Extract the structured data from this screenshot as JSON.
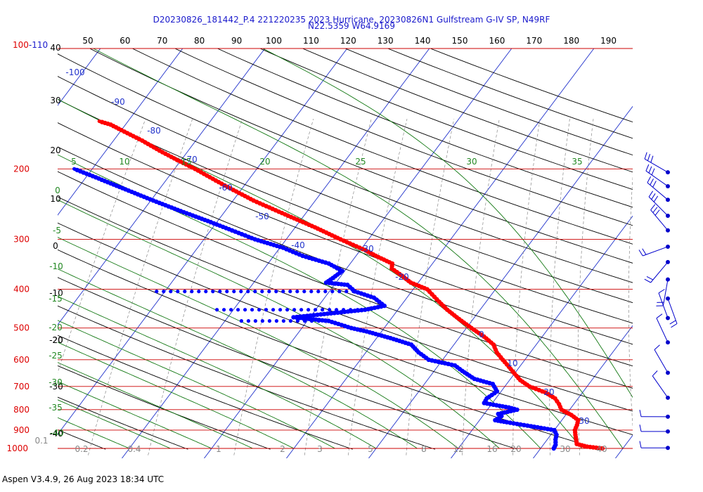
{
  "chart_data": {
    "type": "line",
    "chart_kind": "skew-T log-P sounding diagram",
    "title_line1": "D20230826_181442_P.4 221220235 2023 Hurricane, 20230826N1 Gulfstream G-IV SP, N49RF",
    "title_line2": "N22.5359 W64.9169",
    "footer": "Aspen V3.4.9, 26 Aug 2023  18:34 UTC",
    "ylim_hPa": [
      1000,
      100
    ],
    "y_scale": "log",
    "pressure_labels": [
      "100-110",
      "200",
      "300",
      "400",
      "500",
      "600",
      "700",
      "800",
      "900",
      "1000"
    ],
    "top_temperature_labels": [
      "50",
      "60",
      "70",
      "80",
      "90",
      "100",
      "110",
      "120",
      "130",
      "140",
      "150",
      "160",
      "170",
      "180",
      "190"
    ],
    "height_labels_left": [
      "40",
      "30",
      "20",
      "10",
      "0",
      "-10",
      "-20",
      "-30",
      "-40"
    ],
    "isotherm_labels": [
      "-100",
      "-90",
      "-80",
      "-70",
      "-60",
      "-50",
      "-40",
      "-30",
      "-20",
      "0",
      "10",
      "20",
      "30"
    ],
    "adiabat_labels": [
      "5",
      "10",
      "15",
      "20",
      "25",
      "30",
      "35"
    ],
    "green_left_labels": [
      "0",
      "-5",
      "-10",
      "-15",
      "-20",
      "-25",
      "-30",
      "-35",
      "-40"
    ],
    "mixing_ratio_labels": [
      "0.1",
      "0.2",
      "0.4",
      "1",
      "2",
      "3",
      "5",
      "8",
      "12",
      "16",
      "20",
      "30",
      "40"
    ],
    "colors": {
      "temperature": "#ff0000",
      "dewpoint": "#0000ff",
      "isobar": "#cc0000",
      "isotherm": "#2233cc",
      "dry_adiabat": "#000000",
      "moist_adiabat": "#117711",
      "mixing_ratio": "#888888",
      "wind_barb": "#0000cc"
    },
    "series": [
      {
        "name": "",
        "kind": "temperature",
        "points": [
          [
            1000,
            27.5
          ],
          [
            990,
            25.5
          ],
          [
            975,
            24.0
          ],
          [
            950,
            23.5
          ],
          [
            925,
            23.0
          ],
          [
            900,
            22.5
          ],
          [
            875,
            22.3
          ],
          [
            850,
            22.0
          ],
          [
            825,
            20.7
          ],
          [
            800,
            19.0
          ],
          [
            775,
            18.2
          ],
          [
            750,
            17.2
          ],
          [
            725,
            15.5
          ],
          [
            700,
            13.0
          ],
          [
            675,
            11.3
          ],
          [
            650,
            10.0
          ],
          [
            625,
            8.7
          ],
          [
            600,
            7.3
          ],
          [
            575,
            5.9
          ],
          [
            550,
            4.8
          ],
          [
            525,
            2.9
          ],
          [
            500,
            0.6
          ],
          [
            475,
            -1.7
          ],
          [
            450,
            -4.0
          ],
          [
            430,
            -5.7
          ],
          [
            400,
            -8.3
          ],
          [
            385,
            -10.9
          ],
          [
            370,
            -12.6
          ],
          [
            355,
            -14.5
          ],
          [
            345,
            -14.9
          ],
          [
            330,
            -17.6
          ],
          [
            320,
            -19.3
          ],
          [
            300,
            -23.4
          ],
          [
            280,
            -27.6
          ],
          [
            260,
            -32.4
          ],
          [
            240,
            -37.5
          ],
          [
            220,
            -42.4
          ],
          [
            200,
            -47.5
          ],
          [
            190,
            -50.5
          ],
          [
            180,
            -53.5
          ],
          [
            170,
            -56.5
          ],
          [
            160,
            -60.0
          ],
          [
            155,
            -61.8
          ],
          [
            152,
            -63.5
          ]
        ]
      },
      {
        "name": "",
        "kind": "dewpoint",
        "points": [
          [
            1000,
            21.6
          ],
          [
            980,
            21.5
          ],
          [
            950,
            21.0
          ],
          [
            925,
            20.7
          ],
          [
            900,
            20.0
          ],
          [
            880,
            16.8
          ],
          [
            860,
            13.5
          ],
          [
            850,
            11.9
          ],
          [
            830,
            12.3
          ],
          [
            820,
            11.7
          ],
          [
            800,
            13.6
          ],
          [
            790,
            12.4
          ],
          [
            770,
            9.0
          ],
          [
            750,
            8.9
          ],
          [
            720,
            9.5
          ],
          [
            690,
            8.3
          ],
          [
            670,
            5.6
          ],
          [
            640,
            3.4
          ],
          [
            620,
            2.0
          ],
          [
            600,
            -1.7
          ],
          [
            575,
            -3.6
          ],
          [
            550,
            -5.2
          ],
          [
            530,
            -8.3
          ],
          [
            510,
            -11.8
          ],
          [
            500,
            -14.0
          ],
          [
            480,
            -17.4
          ],
          [
            470,
            -22.0
          ],
          [
            450,
            -14.0
          ],
          [
            440,
            -12.0
          ],
          [
            420,
            -14.0
          ],
          [
            405,
            -16.9
          ],
          [
            390,
            -18.4
          ],
          [
            385,
            -21.2
          ],
          [
            375,
            -20.8
          ],
          [
            360,
            -20.3
          ],
          [
            345,
            -22.6
          ],
          [
            330,
            -26.5
          ],
          [
            315,
            -29.6
          ],
          [
            300,
            -33.8
          ],
          [
            285,
            -37.4
          ],
          [
            270,
            -41.2
          ],
          [
            255,
            -45.4
          ],
          [
            240,
            -49.7
          ],
          [
            225,
            -54.1
          ],
          [
            210,
            -58.8
          ],
          [
            200,
            -62.2
          ]
        ]
      }
    ],
    "moisture_spikes": [
      {
        "p": 405,
        "td": -41
      },
      {
        "p": 450,
        "td": -32
      },
      {
        "p": 480,
        "td": -28
      }
    ],
    "wind_barb_pressures": [
      204,
      221,
      239,
      262,
      285,
      313,
      342,
      378,
      422,
      472,
      543,
      647,
      747,
      833,
      907,
      1001
    ]
  }
}
